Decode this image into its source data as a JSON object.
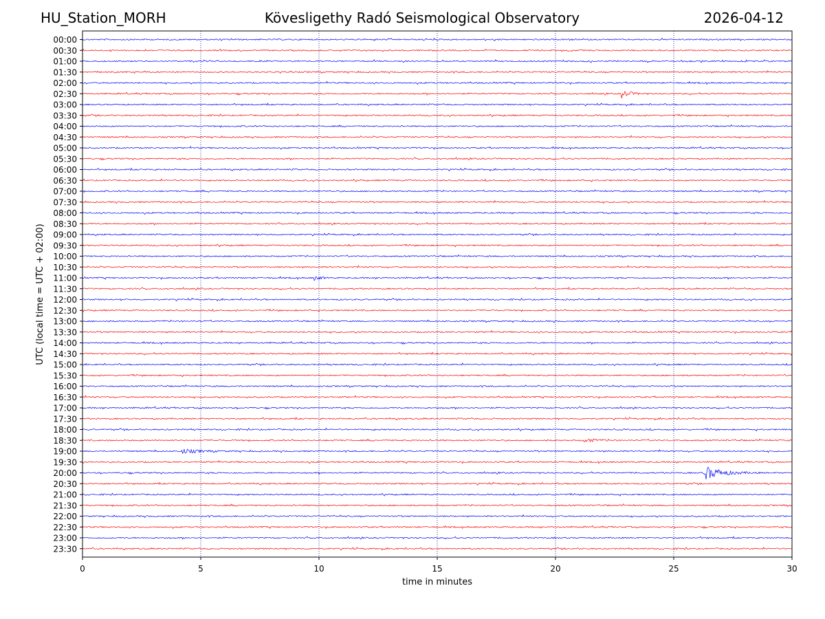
{
  "header": {
    "station": "HU_Station_MORH",
    "title": "Kövesligethy Radó Seismological Observatory",
    "date": "2026-04-12"
  },
  "colors": {
    "even_trace": "#0000ff",
    "odd_trace": "#ff0000",
    "grid": "#000080"
  },
  "chart_data": {
    "type": "line",
    "title": "Kövesligethy Radó Seismological Observatory",
    "xlabel": "time in minutes",
    "ylabel": "UTC (local time = UTC + 02:00)",
    "xlim": [
      0,
      30
    ],
    "x_ticks": [
      0,
      5,
      10,
      15,
      20,
      25,
      30
    ],
    "grid": "vertical dotted at each x tick",
    "rows": [
      "00:00",
      "00:30",
      "01:00",
      "01:30",
      "02:00",
      "02:30",
      "03:00",
      "03:30",
      "04:00",
      "04:30",
      "05:00",
      "05:30",
      "06:00",
      "06:30",
      "07:00",
      "07:30",
      "08:00",
      "08:30",
      "09:00",
      "09:30",
      "10:00",
      "10:30",
      "11:00",
      "11:30",
      "12:00",
      "12:30",
      "13:00",
      "13:30",
      "14:00",
      "14:30",
      "15:00",
      "15:30",
      "16:00",
      "16:30",
      "17:00",
      "17:30",
      "18:00",
      "18:30",
      "19:00",
      "19:30",
      "20:00",
      "20:30",
      "21:00",
      "21:30",
      "22:00",
      "22:30",
      "23:00",
      "23:30"
    ],
    "trace_colors": "alternating blue (on the hour) and red (half hour)",
    "events": [
      {
        "row": "02:30",
        "start_min": 22.8,
        "duration_min": 1.2,
        "amplitude": "medium"
      },
      {
        "row": "11:00",
        "start_min": 9.8,
        "duration_min": 1.0,
        "amplitude": "low"
      },
      {
        "row": "18:30",
        "start_min": 21.2,
        "duration_min": 1.6,
        "amplitude": "low"
      },
      {
        "row": "19:00",
        "start_min": 4.2,
        "duration_min": 3.0,
        "amplitude": "low"
      },
      {
        "row": "20:00",
        "start_min": 26.3,
        "duration_min": 2.5,
        "amplitude": "high"
      }
    ]
  }
}
